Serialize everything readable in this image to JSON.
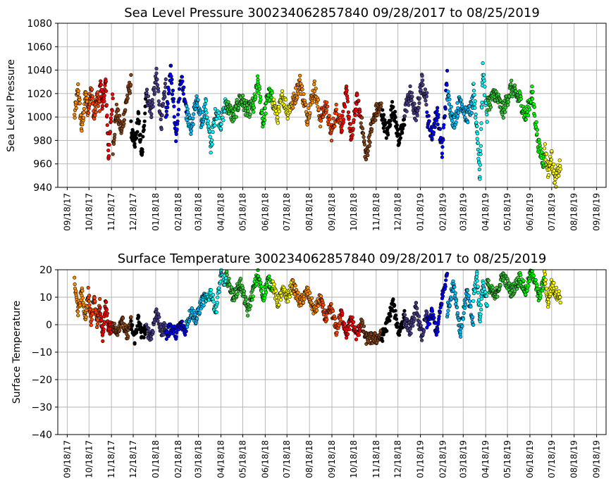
{
  "chart_data": [
    {
      "type": "scatter",
      "title": "Sea Level Pressure 300234062857840  09/28/2017 to 08/25/2019",
      "xlabel": "",
      "ylabel": "Sea Level Pressure",
      "ylim": [
        940,
        1080
      ],
      "yticks": [
        940,
        960,
        980,
        1000,
        1020,
        1040,
        1060,
        1080
      ],
      "xlim": [
        "2017-09-05",
        "2019-10-01"
      ],
      "xticks": [
        "09/18/17",
        "10/18/17",
        "11/18/17",
        "12/18/17",
        "01/18/18",
        "02/18/18",
        "03/18/18",
        "04/18/18",
        "05/18/18",
        "06/18/18",
        "07/18/18",
        "08/18/18",
        "09/18/18",
        "10/18/18",
        "11/18/18",
        "12/18/18",
        "01/18/19",
        "02/18/19",
        "03/18/19",
        "04/18/19",
        "05/18/19",
        "06/18/19",
        "07/18/19",
        "08/18/19",
        "09/18/19"
      ],
      "grid": true,
      "marker_edge": "#000000",
      "series": [
        {
          "color": "#ff8c00",
          "x": [
            "2017-09-28",
            "2017-10-03",
            "2017-10-08",
            "2017-10-13",
            "2017-10-17"
          ],
          "y": [
            1000,
            1024,
            990,
            1018,
            1005
          ]
        },
        {
          "color": "#ff4500",
          "x": [
            "2017-10-17",
            "2017-10-21",
            "2017-10-25",
            "2017-10-29",
            "2017-11-02"
          ],
          "y": [
            1005,
            1026,
            1000,
            1016,
            1010
          ]
        },
        {
          "color": "#ff0000",
          "x": [
            "2017-11-02",
            "2017-11-06",
            "2017-11-10",
            "2017-11-14",
            "2017-11-20"
          ],
          "y": [
            1032,
            1010,
            1030,
            968,
            1018
          ]
        },
        {
          "color": "#8b4513",
          "x": [
            "2017-11-20",
            "2017-11-25",
            "2017-12-02",
            "2017-12-09",
            "2017-12-15"
          ],
          "y": [
            975,
            1005,
            988,
            1015,
            1030
          ]
        },
        {
          "color": "#000000",
          "x": [
            "2017-12-15",
            "2017-12-20",
            "2017-12-25",
            "2017-12-30",
            "2018-01-05"
          ],
          "y": [
            990,
            975,
            1000,
            965,
            1025
          ]
        },
        {
          "color": "#483d8b",
          "x": [
            "2018-01-05",
            "2018-01-12",
            "2018-01-19",
            "2018-01-26",
            "2018-02-01"
          ],
          "y": [
            1020,
            1005,
            1035,
            995,
            1030
          ]
        },
        {
          "color": "#0000ff",
          "x": [
            "2018-02-01",
            "2018-02-08",
            "2018-02-15",
            "2018-02-22",
            "2018-03-01"
          ],
          "y": [
            1000,
            1040,
            985,
            1035,
            1010
          ]
        },
        {
          "color": "#00bfff",
          "x": [
            "2018-03-01",
            "2018-03-08",
            "2018-03-15",
            "2018-03-22",
            "2018-03-28"
          ],
          "y": [
            1005,
            990,
            1015,
            995,
            1010
          ]
        },
        {
          "color": "#00ffff",
          "x": [
            "2018-03-28",
            "2018-04-04",
            "2018-04-11",
            "2018-04-18",
            "2018-04-25"
          ],
          "y": [
            1010,
            975,
            1005,
            995,
            1012
          ]
        },
        {
          "color": "#32cd32",
          "x": [
            "2018-04-25",
            "2018-05-05",
            "2018-05-15",
            "2018-05-25",
            "2018-06-01"
          ],
          "y": [
            1012,
            1000,
            1016,
            1005,
            1010
          ]
        },
        {
          "color": "#00ff00",
          "x": [
            "2018-06-01",
            "2018-06-08",
            "2018-06-15",
            "2018-06-22",
            "2018-06-28"
          ],
          "y": [
            1005,
            1030,
            995,
            1020,
            1015
          ]
        },
        {
          "color": "#ffff00",
          "x": [
            "2018-06-28",
            "2018-07-05",
            "2018-07-12",
            "2018-07-19",
            "2018-07-25"
          ],
          "y": [
            1015,
            1000,
            1018,
            1005,
            1012
          ]
        },
        {
          "color": "#ff8c00",
          "x": [
            "2018-07-25",
            "2018-08-05",
            "2018-08-15",
            "2018-08-25",
            "2018-09-03"
          ],
          "y": [
            1010,
            1030,
            1000,
            1025,
            995
          ]
        },
        {
          "color": "#ff4500",
          "x": [
            "2018-09-03",
            "2018-09-10",
            "2018-09-17",
            "2018-09-24",
            "2018-10-01"
          ],
          "y": [
            1000,
            1010,
            985,
            1005,
            995
          ]
        },
        {
          "color": "#ff0000",
          "x": [
            "2018-10-01",
            "2018-10-08",
            "2018-10-15",
            "2018-10-22",
            "2018-10-28"
          ],
          "y": [
            990,
            1020,
            980,
            1015,
            1000
          ]
        },
        {
          "color": "#8b4513",
          "x": [
            "2018-10-28",
            "2018-11-04",
            "2018-11-11",
            "2018-11-18",
            "2018-11-25"
          ],
          "y": [
            1000,
            965,
            990,
            1005,
            1008
          ]
        },
        {
          "color": "#000000",
          "x": [
            "2018-11-25",
            "2018-12-03",
            "2018-12-11",
            "2018-12-19",
            "2018-12-27"
          ],
          "y": [
            1005,
            985,
            1010,
            980,
            995
          ]
        },
        {
          "color": "#483d8b",
          "x": [
            "2018-12-27",
            "2019-01-04",
            "2019-01-12",
            "2019-01-20",
            "2019-01-27"
          ],
          "y": [
            1005,
            1020,
            1000,
            1030,
            1015
          ]
        },
        {
          "color": "#0000ff",
          "x": [
            "2019-01-27",
            "2019-02-03",
            "2019-02-10",
            "2019-02-17",
            "2019-02-24"
          ],
          "y": [
            1000,
            985,
            1005,
            970,
            1035
          ]
        },
        {
          "color": "#00bfff",
          "x": [
            "2019-02-24",
            "2019-03-05",
            "2019-03-14",
            "2019-03-23",
            "2019-04-01"
          ],
          "y": [
            1020,
            995,
            1015,
            1000,
            1012
          ]
        },
        {
          "color": "#00ffff",
          "x": [
            "2019-04-01",
            "2019-04-06",
            "2019-04-10",
            "2019-04-14",
            "2019-04-20"
          ],
          "y": [
            1025,
            990,
            950,
            1040,
            1000
          ]
        },
        {
          "color": "#32cd32",
          "x": [
            "2019-04-20",
            "2019-05-01",
            "2019-05-12",
            "2019-05-23",
            "2019-06-03"
          ],
          "y": [
            1010,
            1020,
            1005,
            1025,
            1015
          ]
        },
        {
          "color": "#00ff00",
          "x": [
            "2019-06-03",
            "2019-06-12",
            "2019-06-21",
            "2019-06-30",
            "2019-07-08"
          ],
          "y": [
            1018,
            1000,
            1020,
            975,
            960
          ]
        },
        {
          "color": "#ffff00",
          "x": [
            "2019-07-08",
            "2019-07-13",
            "2019-07-18",
            "2019-07-23",
            "2019-07-30"
          ],
          "y": [
            975,
            955,
            965,
            945,
            960
          ]
        }
      ]
    },
    {
      "type": "scatter",
      "title": "Surface Temperature 300234062857840  09/28/2017 to 08/25/2019",
      "xlabel": "",
      "ylabel": "Surface Temperature",
      "ylim": [
        -40,
        20
      ],
      "yticks": [
        -40,
        -30,
        -20,
        -10,
        0,
        10,
        20
      ],
      "xlim": [
        "2017-09-05",
        "2019-10-01"
      ],
      "xticks": [
        "09/18/17",
        "10/18/17",
        "11/18/17",
        "12/18/17",
        "01/18/18",
        "02/18/18",
        "03/18/18",
        "04/18/18",
        "05/18/18",
        "06/18/18",
        "07/18/18",
        "08/18/18",
        "09/18/18",
        "10/18/18",
        "11/18/18",
        "12/18/18",
        "01/18/19",
        "02/18/19",
        "03/18/19",
        "04/18/19",
        "05/18/19",
        "06/18/19",
        "07/18/19",
        "08/18/19",
        "09/18/19"
      ],
      "grid": true,
      "marker_edge": "#000000",
      "series": [
        {
          "color": "#ff8c00",
          "x": [
            "2017-09-28",
            "2017-10-03",
            "2017-10-08",
            "2017-10-13",
            "2017-10-17"
          ],
          "y": [
            15,
            5,
            12,
            3,
            10
          ]
        },
        {
          "color": "#ff4500",
          "x": [
            "2017-10-17",
            "2017-10-21",
            "2017-10-25",
            "2017-10-29",
            "2017-11-02"
          ],
          "y": [
            12,
            2,
            10,
            0,
            8
          ]
        },
        {
          "color": "#ff0000",
          "x": [
            "2017-11-02",
            "2017-11-06",
            "2017-11-10",
            "2017-11-14",
            "2017-11-20"
          ],
          "y": [
            5,
            -4,
            8,
            -2,
            0
          ]
        },
        {
          "color": "#8b4513",
          "x": [
            "2017-11-20",
            "2017-11-25",
            "2017-12-02",
            "2017-12-09",
            "2017-12-15"
          ],
          "y": [
            0,
            -3,
            2,
            -4,
            1
          ]
        },
        {
          "color": "#000000",
          "x": [
            "2017-12-15",
            "2017-12-20",
            "2017-12-25",
            "2017-12-30",
            "2018-01-05"
          ],
          "y": [
            0,
            -5,
            2,
            -4,
            -1
          ]
        },
        {
          "color": "#483d8b",
          "x": [
            "2018-01-05",
            "2018-01-12",
            "2018-01-19",
            "2018-01-26",
            "2018-02-01"
          ],
          "y": [
            -2,
            -4,
            5,
            -3,
            0
          ]
        },
        {
          "color": "#0000ff",
          "x": [
            "2018-02-01",
            "2018-02-08",
            "2018-02-15",
            "2018-02-22",
            "2018-03-01"
          ],
          "y": [
            -4,
            -1,
            -3,
            0,
            -2
          ]
        },
        {
          "color": "#00bfff",
          "x": [
            "2018-03-01",
            "2018-03-08",
            "2018-03-15",
            "2018-03-22",
            "2018-03-28"
          ],
          "y": [
            0,
            5,
            2,
            8,
            10
          ]
        },
        {
          "color": "#00ffff",
          "x": [
            "2018-03-28",
            "2018-04-04",
            "2018-04-11",
            "2018-04-18",
            "2018-04-25"
          ],
          "y": [
            8,
            12,
            5,
            18,
            15
          ]
        },
        {
          "color": "#32cd32",
          "x": [
            "2018-04-25",
            "2018-05-05",
            "2018-05-15",
            "2018-05-25",
            "2018-06-01"
          ],
          "y": [
            18,
            10,
            15,
            5,
            12
          ]
        },
        {
          "color": "#00ff00",
          "x": [
            "2018-06-01",
            "2018-06-08",
            "2018-06-15",
            "2018-06-22",
            "2018-06-28"
          ],
          "y": [
            12,
            18,
            10,
            16,
            14
          ]
        },
        {
          "color": "#ffff00",
          "x": [
            "2018-06-28",
            "2018-07-05",
            "2018-07-12",
            "2018-07-19",
            "2018-07-25"
          ],
          "y": [
            15,
            8,
            12,
            10,
            14
          ]
        },
        {
          "color": "#ff8c00",
          "x": [
            "2018-07-25",
            "2018-08-05",
            "2018-08-15",
            "2018-08-25",
            "2018-09-03"
          ],
          "y": [
            15,
            8,
            12,
            5,
            10
          ]
        },
        {
          "color": "#ff4500",
          "x": [
            "2018-09-03",
            "2018-09-10",
            "2018-09-17",
            "2018-09-24",
            "2018-10-01"
          ],
          "y": [
            8,
            2,
            6,
            -2,
            4
          ]
        },
        {
          "color": "#ff0000",
          "x": [
            "2018-10-01",
            "2018-10-08",
            "2018-10-15",
            "2018-10-22",
            "2018-10-28"
          ],
          "y": [
            4,
            -3,
            2,
            -4,
            0
          ]
        },
        {
          "color": "#8b4513",
          "x": [
            "2018-10-28",
            "2018-11-04",
            "2018-11-11",
            "2018-11-18",
            "2018-11-25"
          ],
          "y": [
            1,
            -5,
            -5,
            -5,
            -4
          ]
        },
        {
          "color": "#000000",
          "x": [
            "2018-11-25",
            "2018-12-03",
            "2018-12-11",
            "2018-12-19",
            "2018-12-27"
          ],
          "y": [
            -5,
            0,
            8,
            -3,
            3
          ]
        },
        {
          "color": "#483d8b",
          "x": [
            "2018-12-27",
            "2019-01-04",
            "2019-01-12",
            "2019-01-20",
            "2019-01-27"
          ],
          "y": [
            2,
            -2,
            6,
            -4,
            4
          ]
        },
        {
          "color": "#0000ff",
          "x": [
            "2019-01-27",
            "2019-02-03",
            "2019-02-10",
            "2019-02-17",
            "2019-02-24"
          ],
          "y": [
            0,
            4,
            -3,
            10,
            18
          ]
        },
        {
          "color": "#00bfff",
          "x": [
            "2019-02-24",
            "2019-03-05",
            "2019-03-14",
            "2019-03-23",
            "2019-04-01"
          ],
          "y": [
            5,
            15,
            -3,
            12,
            0
          ]
        },
        {
          "color": "#00ffff",
          "x": [
            "2019-04-01",
            "2019-04-06",
            "2019-04-10",
            "2019-04-14",
            "2019-04-20"
          ],
          "y": [
            10,
            18,
            2,
            15,
            8
          ]
        },
        {
          "color": "#32cd32",
          "x": [
            "2019-04-20",
            "2019-05-01",
            "2019-05-12",
            "2019-05-23",
            "2019-06-03"
          ],
          "y": [
            15,
            10,
            18,
            12,
            16
          ]
        },
        {
          "color": "#00ff00",
          "x": [
            "2019-06-03",
            "2019-06-12",
            "2019-06-21",
            "2019-06-30",
            "2019-07-08"
          ],
          "y": [
            18,
            12,
            20,
            10,
            16
          ]
        },
        {
          "color": "#ffff00",
          "x": [
            "2019-07-08",
            "2019-07-13",
            "2019-07-18",
            "2019-07-23",
            "2019-07-30"
          ],
          "y": [
            18,
            8,
            15,
            12,
            10
          ]
        }
      ]
    }
  ]
}
